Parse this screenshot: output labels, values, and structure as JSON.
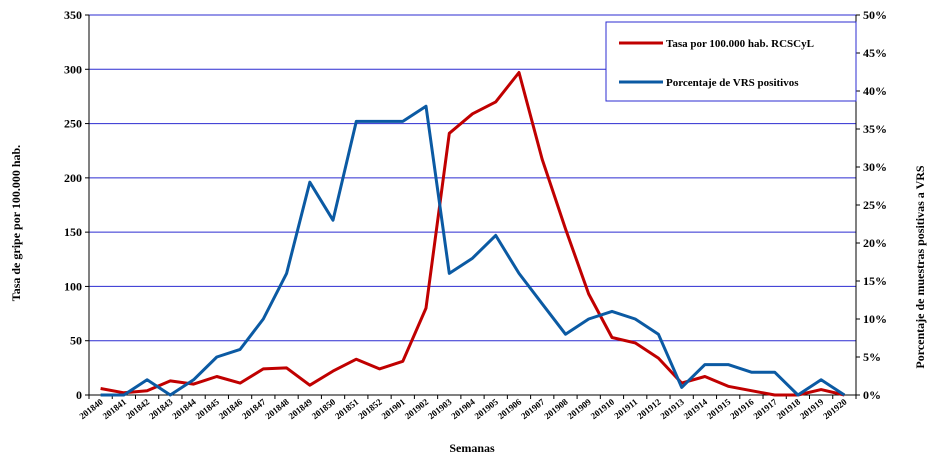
{
  "chart_data": {
    "type": "line",
    "xlabel": "Semanas",
    "ylabel_left": "Tasa de gripe por 100.000 hab.",
    "ylabel_right": "Porcentaje de muestras positivas a VRS",
    "ylim_left": [
      0,
      350
    ],
    "yticks_left": [
      "0",
      "50",
      "100",
      "150",
      "200",
      "250",
      "300",
      "350"
    ],
    "ylim_right": [
      0,
      50
    ],
    "yticks_right": [
      "0%",
      "5%",
      "10%",
      "15%",
      "20%",
      "25%",
      "30%",
      "35%",
      "40%",
      "45%",
      "50%"
    ],
    "grid": true,
    "legend_position": "top-right",
    "categories": [
      "201840",
      "201841",
      "201842",
      "201843",
      "201844",
      "201845",
      "201846",
      "201847",
      "201848",
      "201849",
      "201850",
      "201851",
      "201852",
      "201901",
      "201902",
      "201903",
      "201904",
      "201905",
      "201906",
      "201907",
      "201908",
      "201909",
      "201910",
      "201911",
      "201912",
      "201913",
      "201914",
      "201915",
      "201916",
      "201917",
      "201918",
      "201919",
      "201920"
    ],
    "series": [
      {
        "name": "Tasa por 100.000 hab. RCSCyL",
        "axis": "left",
        "color": "#c00000",
        "values": [
          6,
          2,
          4,
          13,
          10,
          17,
          11,
          24,
          25,
          9,
          22,
          33,
          24,
          31,
          80,
          241,
          259,
          270,
          297,
          217,
          153,
          93,
          53,
          48,
          34,
          11,
          17,
          8,
          4,
          0,
          0,
          5,
          0
        ]
      },
      {
        "name": "Porcentaje de VRS positivos",
        "axis": "right",
        "color": "#0b5aa3",
        "values": [
          0,
          0,
          2,
          0,
          2,
          5,
          6,
          10,
          16,
          28,
          23,
          36,
          36,
          36,
          38,
          16,
          18,
          21,
          16,
          12,
          8,
          10,
          11,
          10,
          8,
          1,
          4,
          4,
          3,
          3,
          0,
          2,
          0
        ]
      }
    ]
  }
}
